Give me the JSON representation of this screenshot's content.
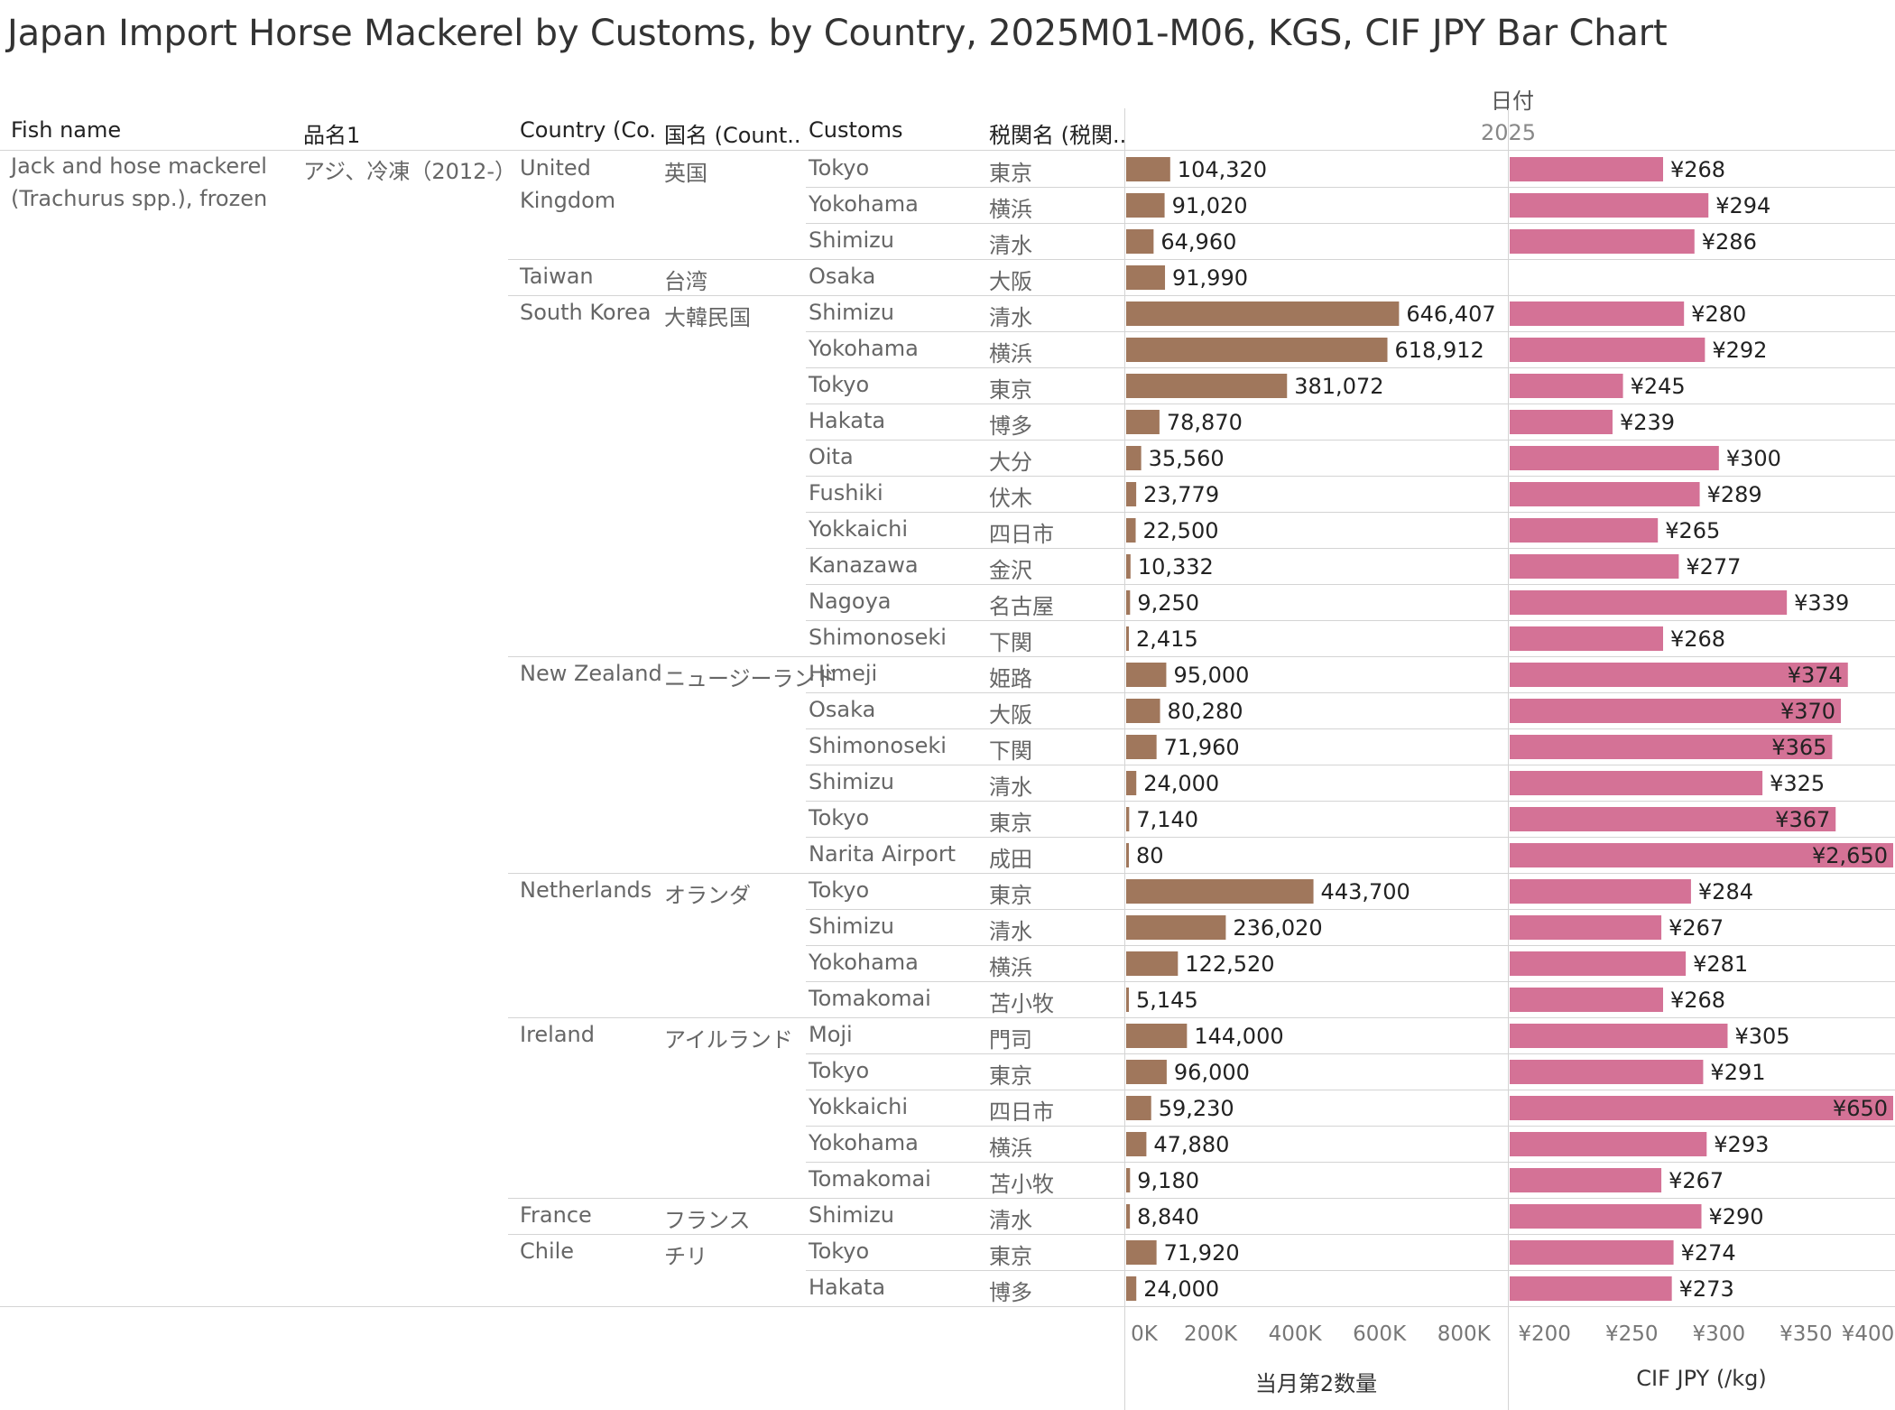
{
  "title": "Japan Import Horse Mackerel by Customs, by Country, 2025M01-M06, KGS, CIF JPY Bar Chart",
  "headers": {
    "fish_name": "Fish name",
    "hinmei": "品名1",
    "country": "Country (Co..",
    "kokumei": "国名 (Count..",
    "customs": "Customs",
    "zeikan": "税関名 (税関..",
    "date_label": "日付",
    "year": "2025"
  },
  "fish": {
    "name_line1": "Jack and hose mackerel",
    "name_line2": "(Trachurus spp.), frozen",
    "hinmei": "アジ、冷凍（2012-）"
  },
  "countries": [
    {
      "name_line1": "United",
      "name_line2": "Kingdom",
      "jp": "英国",
      "rows": 3
    },
    {
      "name_line1": "Taiwan",
      "name_line2": "",
      "jp": "台湾",
      "rows": 1
    },
    {
      "name_line1": "South Korea",
      "name_line2": "",
      "jp": "大韓民国",
      "rows": 10
    },
    {
      "name_line1": "New Zealand",
      "name_line2": "",
      "jp": "ニュージーランド",
      "rows": 6
    },
    {
      "name_line1": "Netherlands",
      "name_line2": "",
      "jp": "オランダ",
      "rows": 4
    },
    {
      "name_line1": "Ireland",
      "name_line2": "",
      "jp": "アイルランド",
      "rows": 5
    },
    {
      "name_line1": "France",
      "name_line2": "",
      "jp": "フランス",
      "rows": 1
    },
    {
      "name_line1": "Chile",
      "name_line2": "",
      "jp": "チリ",
      "rows": 2
    }
  ],
  "chart_data": {
    "type": "bar",
    "orientation": "horizontal",
    "panels": [
      {
        "measure": "quantity",
        "xlabel": "当月第2数量",
        "color": "#A0775C",
        "xlim": [
          0,
          900000
        ],
        "ticks": [
          0,
          200000,
          400000,
          600000,
          800000
        ],
        "tick_labels": [
          "0K",
          "200K",
          "400K",
          "600K",
          "800K"
        ]
      },
      {
        "measure": "price",
        "xlabel": "CIF JPY (/kg)",
        "color": "#D47296",
        "xlim": [
          180,
          400
        ],
        "ticks": [
          200,
          250,
          300,
          350,
          400
        ],
        "tick_labels": [
          "¥200",
          "¥250",
          "¥300",
          "¥350",
          "¥400"
        ]
      }
    ],
    "rows": [
      {
        "country": "United Kingdom",
        "customs": "Tokyo",
        "customs_jp": "東京",
        "quantity": 104320,
        "quantity_label": "104,320",
        "price": 268,
        "price_label": "¥268"
      },
      {
        "country": "United Kingdom",
        "customs": "Yokohama",
        "customs_jp": "横浜",
        "quantity": 91020,
        "quantity_label": "91,020",
        "price": 294,
        "price_label": "¥294"
      },
      {
        "country": "United Kingdom",
        "customs": "Shimizu",
        "customs_jp": "清水",
        "quantity": 64960,
        "quantity_label": "64,960",
        "price": 286,
        "price_label": "¥286"
      },
      {
        "country": "Taiwan",
        "customs": "Osaka",
        "customs_jp": "大阪",
        "quantity": 91990,
        "quantity_label": "91,990",
        "price": null,
        "price_label": ""
      },
      {
        "country": "South Korea",
        "customs": "Shimizu",
        "customs_jp": "清水",
        "quantity": 646407,
        "quantity_label": "646,407",
        "price": 280,
        "price_label": "¥280"
      },
      {
        "country": "South Korea",
        "customs": "Yokohama",
        "customs_jp": "横浜",
        "quantity": 618912,
        "quantity_label": "618,912",
        "price": 292,
        "price_label": "¥292"
      },
      {
        "country": "South Korea",
        "customs": "Tokyo",
        "customs_jp": "東京",
        "quantity": 381072,
        "quantity_label": "381,072",
        "price": 245,
        "price_label": "¥245"
      },
      {
        "country": "South Korea",
        "customs": "Hakata",
        "customs_jp": "博多",
        "quantity": 78870,
        "quantity_label": "78,870",
        "price": 239,
        "price_label": "¥239"
      },
      {
        "country": "South Korea",
        "customs": "Oita",
        "customs_jp": "大分",
        "quantity": 35560,
        "quantity_label": "35,560",
        "price": 300,
        "price_label": "¥300"
      },
      {
        "country": "South Korea",
        "customs": "Fushiki",
        "customs_jp": "伏木",
        "quantity": 23779,
        "quantity_label": "23,779",
        "price": 289,
        "price_label": "¥289"
      },
      {
        "country": "South Korea",
        "customs": "Yokkaichi",
        "customs_jp": "四日市",
        "quantity": 22500,
        "quantity_label": "22,500",
        "price": 265,
        "price_label": "¥265"
      },
      {
        "country": "South Korea",
        "customs": "Kanazawa",
        "customs_jp": "金沢",
        "quantity": 10332,
        "quantity_label": "10,332",
        "price": 277,
        "price_label": "¥277"
      },
      {
        "country": "South Korea",
        "customs": "Nagoya",
        "customs_jp": "名古屋",
        "quantity": 9250,
        "quantity_label": "9,250",
        "price": 339,
        "price_label": "¥339"
      },
      {
        "country": "South Korea",
        "customs": "Shimonoseki",
        "customs_jp": "下関",
        "quantity": 2415,
        "quantity_label": "2,415",
        "price": 268,
        "price_label": "¥268"
      },
      {
        "country": "New Zealand",
        "customs": "Himeji",
        "customs_jp": "姫路",
        "quantity": 95000,
        "quantity_label": "95,000",
        "price": 374,
        "price_label": "¥374"
      },
      {
        "country": "New Zealand",
        "customs": "Osaka",
        "customs_jp": "大阪",
        "quantity": 80280,
        "quantity_label": "80,280",
        "price": 370,
        "price_label": "¥370"
      },
      {
        "country": "New Zealand",
        "customs": "Shimonoseki",
        "customs_jp": "下関",
        "quantity": 71960,
        "quantity_label": "71,960",
        "price": 365,
        "price_label": "¥365"
      },
      {
        "country": "New Zealand",
        "customs": "Shimizu",
        "customs_jp": "清水",
        "quantity": 24000,
        "quantity_label": "24,000",
        "price": 325,
        "price_label": "¥325"
      },
      {
        "country": "New Zealand",
        "customs": "Tokyo",
        "customs_jp": "東京",
        "quantity": 7140,
        "quantity_label": "7,140",
        "price": 367,
        "price_label": "¥367"
      },
      {
        "country": "New Zealand",
        "customs": "Narita Airport",
        "customs_jp": "成田",
        "quantity": 80,
        "quantity_label": "80",
        "price": 2650,
        "price_label": "¥2,650"
      },
      {
        "country": "Netherlands",
        "customs": "Tokyo",
        "customs_jp": "東京",
        "quantity": 443700,
        "quantity_label": "443,700",
        "price": 284,
        "price_label": "¥284"
      },
      {
        "country": "Netherlands",
        "customs": "Shimizu",
        "customs_jp": "清水",
        "quantity": 236020,
        "quantity_label": "236,020",
        "price": 267,
        "price_label": "¥267"
      },
      {
        "country": "Netherlands",
        "customs": "Yokohama",
        "customs_jp": "横浜",
        "quantity": 122520,
        "quantity_label": "122,520",
        "price": 281,
        "price_label": "¥281"
      },
      {
        "country": "Netherlands",
        "customs": "Tomakomai",
        "customs_jp": "苫小牧",
        "quantity": 5145,
        "quantity_label": "5,145",
        "price": 268,
        "price_label": "¥268"
      },
      {
        "country": "Ireland",
        "customs": "Moji",
        "customs_jp": "門司",
        "quantity": 144000,
        "quantity_label": "144,000",
        "price": 305,
        "price_label": "¥305"
      },
      {
        "country": "Ireland",
        "customs": "Tokyo",
        "customs_jp": "東京",
        "quantity": 96000,
        "quantity_label": "96,000",
        "price": 291,
        "price_label": "¥291"
      },
      {
        "country": "Ireland",
        "customs": "Yokkaichi",
        "customs_jp": "四日市",
        "quantity": 59230,
        "quantity_label": "59,230",
        "price": 650,
        "price_label": "¥650"
      },
      {
        "country": "Ireland",
        "customs": "Yokohama",
        "customs_jp": "横浜",
        "quantity": 47880,
        "quantity_label": "47,880",
        "price": 293,
        "price_label": "¥293"
      },
      {
        "country": "Ireland",
        "customs": "Tomakomai",
        "customs_jp": "苫小牧",
        "quantity": 9180,
        "quantity_label": "9,180",
        "price": 267,
        "price_label": "¥267"
      },
      {
        "country": "France",
        "customs": "Shimizu",
        "customs_jp": "清水",
        "quantity": 8840,
        "quantity_label": "8,840",
        "price": 290,
        "price_label": "¥290"
      },
      {
        "country": "Chile",
        "customs": "Tokyo",
        "customs_jp": "東京",
        "quantity": 71920,
        "quantity_label": "71,920",
        "price": 274,
        "price_label": "¥274"
      },
      {
        "country": "Chile",
        "customs": "Hakata",
        "customs_jp": "博多",
        "quantity": 24000,
        "quantity_label": "24,000",
        "price": 273,
        "price_label": "¥273"
      }
    ]
  }
}
